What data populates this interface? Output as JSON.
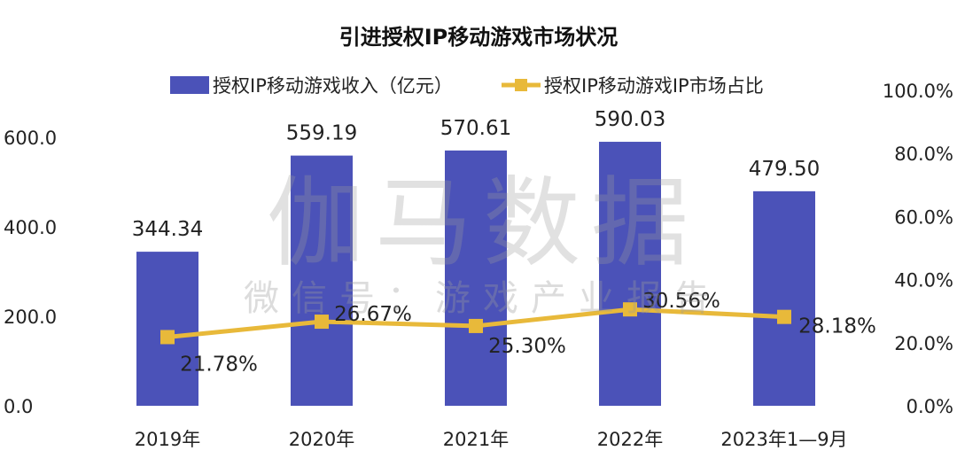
{
  "chart_data": {
    "type": "bar+line",
    "title": "引进授权IP移动游戏市场状况",
    "categories": [
      "2019年",
      "2020年",
      "2021年",
      "2022年",
      "2023年1—9月"
    ],
    "series": [
      {
        "name": "授权IP移动游戏收入（亿元）",
        "type": "bar",
        "axis": "left",
        "color": "#4b52b8",
        "values": [
          344.34,
          559.19,
          570.61,
          590.03,
          479.5
        ],
        "labels": [
          "344.34",
          "559.19",
          "570.61",
          "590.03",
          "479.50"
        ]
      },
      {
        "name": "授权IP移动游戏IP市场占比",
        "type": "line",
        "axis": "right",
        "color": "#e8b93a",
        "values": [
          21.78,
          26.67,
          25.3,
          30.56,
          28.18
        ],
        "labels": [
          "21.78%",
          "26.67%",
          "25.30%",
          "30.56%",
          "28.18%"
        ]
      }
    ],
    "left_axis": {
      "ylim": [
        0,
        600
      ],
      "ticks": [
        "0.0",
        "200.0",
        "400.0",
        "600.0"
      ]
    },
    "right_axis": {
      "ylim": [
        0,
        100
      ],
      "ticks": [
        "0.0%",
        "20.0%",
        "40.0%",
        "60.0%",
        "80.0%",
        "100.0%"
      ]
    },
    "legend_position": "top",
    "grid": false
  },
  "watermark": {
    "main": "伽马数据",
    "sub": "微信号：游戏产业报告"
  }
}
